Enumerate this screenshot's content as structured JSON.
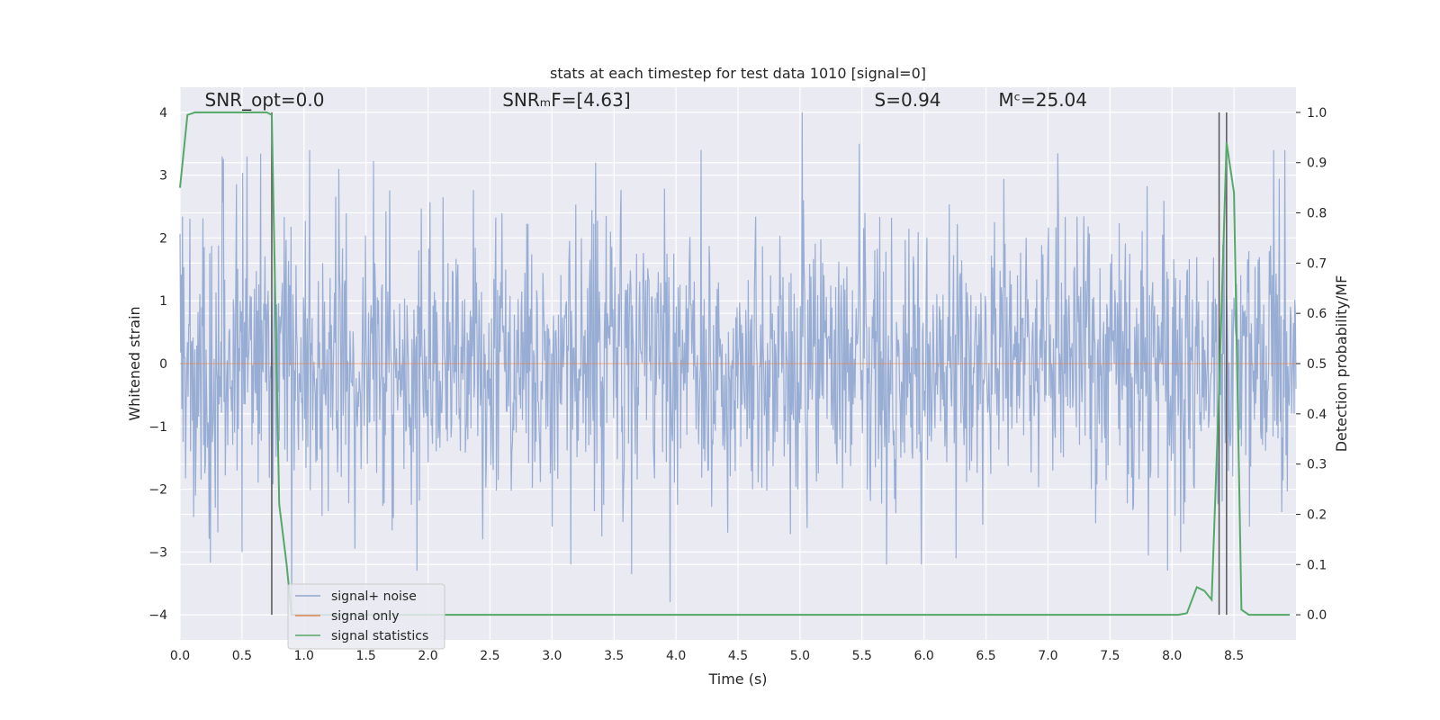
{
  "chart_data": {
    "type": "line",
    "title": "stats at each timestep for test data 1010 [signal=0]",
    "xlabel": "Time (s)",
    "ylabel": "Whitened strain",
    "y2label": "Detection probability/MF",
    "xlim": [
      0.0,
      9.0
    ],
    "ylim": [
      -4.4,
      4.4
    ],
    "y2lim": [
      -0.05,
      1.05
    ],
    "xticks": [
      0.0,
      0.5,
      1.0,
      1.5,
      2.0,
      2.5,
      3.0,
      3.5,
      4.0,
      4.5,
      5.0,
      5.5,
      6.0,
      6.5,
      7.0,
      7.5,
      8.0,
      8.5
    ],
    "xtick_labels": [
      "0.0",
      "0.5",
      "1.0",
      "1.5",
      "2.0",
      "2.5",
      "3.0",
      "3.5",
      "4.0",
      "4.5",
      "5.0",
      "5.5",
      "6.0",
      "6.5",
      "7.0",
      "7.5",
      "8.0",
      "8.5"
    ],
    "yticks": [
      4,
      3,
      2,
      1,
      0,
      -1,
      -2,
      -3,
      -4
    ],
    "ytick_labels": [
      "4",
      "3",
      "2",
      "1",
      "0",
      "−1",
      "−2",
      "−3",
      "−4"
    ],
    "y2ticks": [
      1.0,
      0.9,
      0.8,
      0.7,
      0.6,
      0.5,
      0.4,
      0.3,
      0.2,
      0.1,
      0.0
    ],
    "y2tick_labels": [
      "1.0",
      "0.9",
      "0.8",
      "0.7",
      "0.6",
      "0.5",
      "0.4",
      "0.3",
      "0.2",
      "0.1",
      "0.0"
    ],
    "grid": true,
    "legend_position": "lower-left",
    "annotations": [
      {
        "text": "SNR_opt=0.0",
        "x": 0.2
      },
      {
        "text": "SNRₘF=[4.63]",
        "x": 2.6
      },
      {
        "text": "S=0.94",
        "x": 5.6
      },
      {
        "text": "Mᶜ=25.04",
        "x": 6.6
      }
    ],
    "annotation_y": 4.1,
    "vlines": [
      0.74,
      8.38,
      8.44
    ],
    "series": [
      {
        "name": "signal+ noise",
        "color": "#8fa6d0",
        "kind": "noise",
        "x_range": [
          0.0,
          9.0
        ],
        "samples": 1800,
        "sigma": 1.1,
        "peaks": [
          {
            "x": 0.34,
            "y": 3.3
          },
          {
            "x": 0.54,
            "y": 3.3
          },
          {
            "x": 1.28,
            "y": 3.1
          },
          {
            "x": 3.35,
            "y": 3.2
          },
          {
            "x": 4.2,
            "y": 3.4
          },
          {
            "x": 5.02,
            "y": 4.0
          },
          {
            "x": 5.48,
            "y": 3.5
          },
          {
            "x": 3.95,
            "y": -3.8
          },
          {
            "x": 3.15,
            "y": -3.2
          },
          {
            "x": 3.64,
            "y": -3.35
          },
          {
            "x": 1.91,
            "y": -3.3
          },
          {
            "x": 0.9,
            "y": -4.0
          },
          {
            "x": 0.5,
            "y": -3.0
          },
          {
            "x": 5.7,
            "y": -3.2
          },
          {
            "x": 5.98,
            "y": -3.2
          },
          {
            "x": 6.26,
            "y": -3.1
          }
        ]
      },
      {
        "name": "signal only",
        "color": "#dd8452",
        "kind": "flat",
        "x": [
          0.0,
          9.0
        ],
        "y": [
          0.0,
          0.0
        ]
      },
      {
        "name": "signal statistics",
        "color": "#55a868",
        "kind": "line",
        "axis": "y2",
        "x": [
          0.0,
          0.06,
          0.12,
          0.2,
          0.4,
          0.6,
          0.7,
          0.74,
          0.8,
          0.86,
          0.9,
          1.0,
          2.0,
          4.0,
          6.0,
          7.5,
          8.05,
          8.12,
          8.2,
          8.26,
          8.32,
          8.38,
          8.44,
          8.5,
          8.56,
          8.62,
          8.7,
          8.95
        ],
        "y": [
          0.85,
          0.995,
          1.0,
          1.0,
          1.0,
          1.0,
          1.0,
          0.995,
          0.22,
          0.1,
          0.0,
          0.0,
          0.0,
          0.0,
          0.0,
          0.0,
          0.0,
          0.003,
          0.055,
          0.048,
          0.03,
          0.45,
          0.94,
          0.84,
          0.01,
          0.0,
          0.0,
          0.0
        ]
      }
    ]
  }
}
